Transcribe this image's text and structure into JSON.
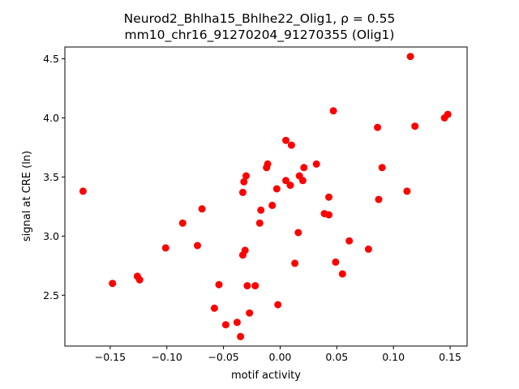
{
  "chart_data": {
    "type": "scatter",
    "title_line1": "Neurod2_Bhlha15_Bhlhe22_Olig1, ρ = 0.55",
    "title_line2": "mm10_chr16_91270204_91270355 (Olig1)",
    "xlabel": "motif activity",
    "ylabel": "signal at CRE (ln)",
    "xlim": [
      -0.19,
      0.165
    ],
    "ylim": [
      2.07,
      4.6
    ],
    "xticks": [
      -0.15,
      -0.1,
      -0.05,
      0.0,
      0.05,
      0.1,
      0.15
    ],
    "xtick_labels": [
      "−0.15",
      "−0.10",
      "−0.05",
      "0.00",
      "0.05",
      "0.10",
      "0.15"
    ],
    "yticks": [
      2.5,
      3.0,
      3.5,
      4.0,
      4.5
    ],
    "ytick_labels": [
      "2.5",
      "3.0",
      "3.5",
      "4.0",
      "4.5"
    ],
    "grid": false,
    "marker_color": "#ff0000",
    "x": [
      -0.174,
      -0.148,
      -0.126,
      -0.124,
      -0.101,
      -0.086,
      -0.073,
      -0.069,
      -0.058,
      -0.054,
      -0.048,
      -0.038,
      -0.035,
      -0.033,
      -0.033,
      -0.032,
      -0.031,
      -0.03,
      -0.029,
      -0.027,
      -0.022,
      -0.018,
      -0.017,
      -0.012,
      -0.011,
      -0.007,
      -0.003,
      -0.002,
      0.005,
      0.005,
      0.009,
      0.01,
      0.013,
      0.016,
      0.017,
      0.02,
      0.021,
      0.032,
      0.039,
      0.043,
      0.043,
      0.047,
      0.049,
      0.055,
      0.061,
      0.078,
      0.086,
      0.087,
      0.09,
      0.112,
      0.115,
      0.119,
      0.145,
      0.148
    ],
    "y": [
      3.38,
      2.6,
      2.66,
      2.63,
      2.9,
      3.11,
      2.92,
      3.23,
      2.39,
      2.59,
      2.25,
      2.27,
      2.15,
      3.37,
      2.84,
      3.46,
      2.88,
      3.51,
      2.58,
      2.35,
      2.58,
      3.11,
      3.22,
      3.58,
      3.61,
      3.26,
      3.4,
      2.42,
      3.47,
      3.81,
      3.43,
      3.77,
      2.77,
      3.03,
      3.51,
      3.47,
      3.58,
      3.61,
      3.19,
      3.33,
      3.18,
      4.06,
      2.78,
      2.68,
      2.96,
      2.89,
      3.92,
      3.31,
      3.58,
      3.38,
      4.52,
      3.93,
      4.0,
      4.03
    ]
  }
}
